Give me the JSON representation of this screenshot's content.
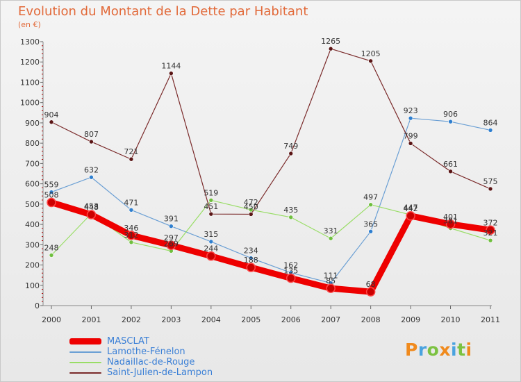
{
  "title": "Evolution du Montant de la Dette par Habitant",
  "subtitle": "(en €)",
  "logo": {
    "text": "Proxiti",
    "colors": [
      "#f08a1d",
      "#4aa3df",
      "#7cc242",
      "#f08a1d",
      "#4aa3df",
      "#7cc242",
      "#f08a1d"
    ]
  },
  "chart_data": {
    "type": "line",
    "x": [
      "2000",
      "2001",
      "2002",
      "2003",
      "2004",
      "2005",
      "2006",
      "2007",
      "2008",
      "2009",
      "2010",
      "2011"
    ],
    "ylim": [
      0,
      1300
    ],
    "yticks": [
      0,
      100,
      200,
      300,
      400,
      500,
      600,
      700,
      800,
      900,
      1000,
      1100,
      1200,
      1300
    ],
    "grid": false,
    "legend_position": "bottom-left",
    "series": [
      {
        "name": "MASCLAT",
        "color": "#ee0000",
        "values": [
          508,
          448,
          346,
          297,
          244,
          188,
          135,
          85,
          68,
          442,
          401,
          372
        ]
      },
      {
        "name": "Lamothe-Fénelon",
        "color": "#6a9fd4",
        "values": [
          559,
          632,
          471,
          391,
          315,
          234,
          162,
          111,
          365,
          923,
          906,
          864
        ]
      },
      {
        "name": "Nadaillac-de-Rouge",
        "color": "#99dd66",
        "values": [
          248,
          453,
          312,
          269,
          519,
          472,
          435,
          331,
          497,
          447,
          381,
          321
        ]
      },
      {
        "name": "Saint-Julien-de-Lampon",
        "color": "#7a2a2a",
        "values": [
          904,
          807,
          721,
          1144,
          451,
          450,
          749,
          1265,
          1205,
          799,
          661,
          575
        ]
      }
    ]
  }
}
